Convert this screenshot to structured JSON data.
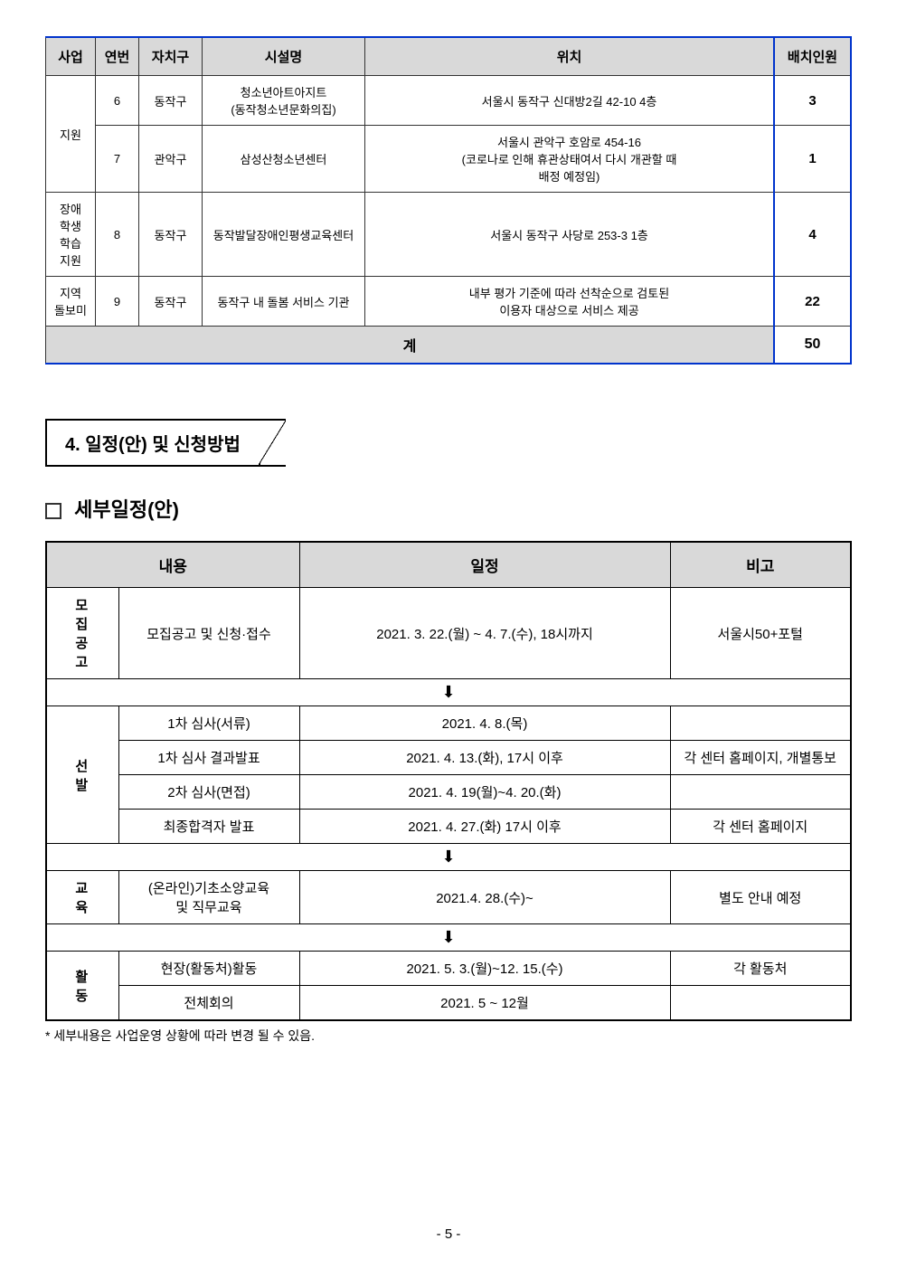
{
  "table1": {
    "headers": [
      "사업",
      "연번",
      "자치구",
      "시설명",
      "위치",
      "배치인원"
    ],
    "rows": [
      {
        "biz": "지원",
        "biz_rowspan": 2,
        "num": "6",
        "dist": "동작구",
        "facility": "청소년아트아지트\n(동작청소년문화의집)",
        "loc": "서울시 동작구 신대방2길 42-10 4층",
        "staff": "3"
      },
      {
        "num": "7",
        "dist": "관악구",
        "facility": "삼성산청소년센터",
        "loc": "서울시 관악구 호암로 454-16\n(코로나로 인해 휴관상태여서 다시 개관할 때\n배정 예정임)",
        "staff": "1"
      },
      {
        "biz": "장애\n학생\n학습\n지원",
        "biz_rowspan": 1,
        "num": "8",
        "dist": "동작구",
        "facility": "동작발달장애인평생교육센터",
        "loc": "서울시 동작구 사당로 253-3 1층",
        "staff": "4"
      },
      {
        "biz": "지역\n돌보미",
        "biz_rowspan": 1,
        "num": "9",
        "dist": "동작구",
        "facility": "동작구 내 돌봄 서비스 기관",
        "loc": "내부 평가 기준에 따라 선착순으로 검토된\n이용자 대상으로 서비스 제공",
        "staff": "22"
      }
    ],
    "total_label": "계",
    "total_value": "50"
  },
  "section4": {
    "title": "4. 일정(안) 및 신청방법",
    "subheading": "세부일정(안)"
  },
  "table2": {
    "headers": [
      "내용",
      "일정",
      "비고"
    ],
    "rows": [
      {
        "type": "data",
        "cat": "모집공고",
        "cat_rowspan": 1,
        "content": "모집공고 및 신청·접수",
        "date": "2021. 3. 22.(월) ~ 4. 7.(수), 18시까지",
        "note": "서울시50+포털"
      },
      {
        "type": "arrow"
      },
      {
        "type": "data",
        "cat": "선  발",
        "cat_rowspan": 4,
        "content": "1차 심사(서류)",
        "date": "2021. 4. 8.(목)",
        "note": ""
      },
      {
        "type": "data",
        "content": "1차 심사 결과발표",
        "date": "2021. 4. 13.(화), 17시 이후",
        "note": "각 센터 홈페이지, 개별통보"
      },
      {
        "type": "data",
        "content": "2차 심사(면접)",
        "date": "2021. 4. 19(월)~4. 20.(화)",
        "note": ""
      },
      {
        "type": "data",
        "content": "최종합격자 발표",
        "date": "2021. 4. 27.(화) 17시 이후",
        "note": "각 센터 홈페이지"
      },
      {
        "type": "arrow"
      },
      {
        "type": "data",
        "cat": "교  육",
        "cat_rowspan": 1,
        "content": "(온라인)기초소양교육\n및 직무교육",
        "date": "2021.4. 28.(수)~",
        "note": "별도 안내 예정"
      },
      {
        "type": "arrow"
      },
      {
        "type": "data",
        "cat": "활  동",
        "cat_rowspan": 2,
        "content": "현장(활동처)활동",
        "date": "2021. 5. 3.(월)~12. 15.(수)",
        "note": "각 활동처"
      },
      {
        "type": "data",
        "content": "전체회의",
        "date": "2021. 5 ~ 12월",
        "note": ""
      }
    ]
  },
  "footnote": "* 세부내용은 사업운영 상황에 따라 변경 될 수 있음.",
  "page_number": "- 5 -",
  "arrow_glyph": "⬇"
}
